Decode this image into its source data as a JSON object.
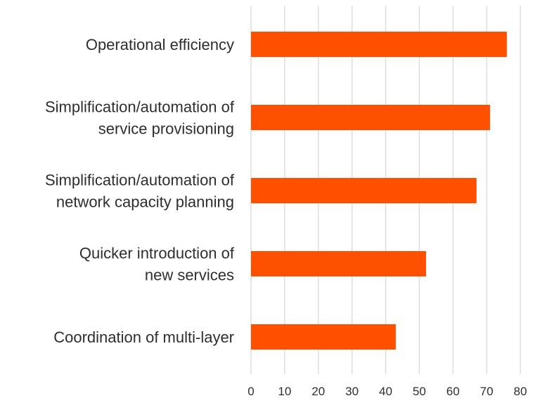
{
  "chart_data": {
    "type": "bar",
    "orientation": "horizontal",
    "categories": [
      "Operational efficiency",
      "Simplification/automation of service provisioning",
      "Simplification/automation of network capacity planning",
      "Quicker introduction of new services",
      "Coordination of multi-layer"
    ],
    "category_label_lines": [
      [
        "Operational efficiency"
      ],
      [
        "Simplification/automation of",
        "service provisioning"
      ],
      [
        "Simplification/automation of",
        "network capacity planning"
      ],
      [
        "Quicker introduction of",
        "new services"
      ],
      [
        "Coordination of multi-layer"
      ]
    ],
    "values": [
      76,
      71,
      67,
      52,
      43
    ],
    "xlim": [
      0,
      80
    ],
    "x_ticks": [
      "0",
      "10",
      "20",
      "30",
      "40",
      "50",
      "60",
      "70",
      "80"
    ],
    "title": "",
    "xlabel": "",
    "ylabel": "",
    "grid": "vertical",
    "legend": "none"
  },
  "colors": {
    "bar": "#ff5000",
    "grid": "#dcdcdc",
    "text": "#2e2e2e"
  }
}
